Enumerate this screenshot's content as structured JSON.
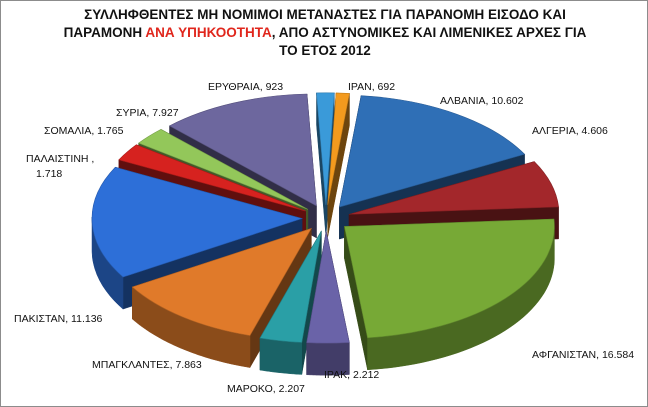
{
  "title": {
    "part1": "ΣΥΛΛΗΦΘΕΝΤΕΣ ΜΗ ΝΟΜΙΜΟΙ ΜΕΤΑΝΑΣΤΕΣ ΓΙΑ ΠΑΡΑΝΟΜΗ ΕΙΣΟΔΟ ΚΑΙ ΠΑΡΑΜΟΝΗ",
    "highlight": "ΑΝΑ ΥΠΗΚΟΟΤΗΤΑ",
    "part2": ", ΑΠΟ ΑΣΤΥΝΟΜΙΚΕΣ ΚΑΙ ΛΙΜΕΝΙΚΕΣ ΑΡΧΕΣ ΓΙΑ ΤΟ ΕΤΟΣ 2012",
    "highlight_color": "#e0261c"
  },
  "chart_data": {
    "type": "pie",
    "style": "3d-exploded",
    "legend": "none",
    "slices": [
      {
        "name": "ΙΡΑΝ",
        "value": 692,
        "label": "ΙΡΑΝ, 692",
        "color": "#f39a1e"
      },
      {
        "name": "ΑΛΒΑΝΙΑ",
        "value": 10602,
        "label": "ΑΛΒΑΝΙΑ, 10.602",
        "color": "#2f6fb6"
      },
      {
        "name": "ΑΛΓΕΡΙΑ",
        "value": 4606,
        "label": "ΑΛΓΕΡΙΑ, 4.606",
        "color": "#a3272b"
      },
      {
        "name": "ΑΦΓΑΝΙΣΤΑΝ",
        "value": 16584,
        "label": "ΑΦΓΑΝΙΣΤΑΝ, 16.584",
        "color": "#77a936"
      },
      {
        "name": "ΙΡΑΚ",
        "value": 2212,
        "label": "ΙΡΑΚ, 2.212",
        "color": "#6a63a8"
      },
      {
        "name": "ΜΑΡΟΚΟ",
        "value": 2207,
        "label": "ΜΑΡΟΚΟ, 2.207",
        "color": "#2a9fa6"
      },
      {
        "name": "ΜΠΑΓΚΛΑΝΤΕΣ",
        "value": 7863,
        "label": "ΜΠΑΓΚΛΑΝΤΕΣ, 7.863",
        "color": "#e07a2a"
      },
      {
        "name": "ΠΑΚΙΣΤΑΝ",
        "value": 11136,
        "label": "ΠΑΚΙΣΤΑΝ, 11.136",
        "color": "#2d6fd8"
      },
      {
        "name": "ΠΑΛΑΙΣΤΙΝΗ",
        "value": 1718,
        "label": "ΠΑΛΑΙΣΤΙΝΗ , 1.718",
        "color": "#d6221f"
      },
      {
        "name": "ΣΟΜΑΛΙΑ",
        "value": 1765,
        "label": "ΣΟΜΑΛΙΑ, 1.765",
        "color": "#93c75a"
      },
      {
        "name": "ΣΥΡΙΑ",
        "value": 7927,
        "label": "ΣΥΡΙΑ, 7.927",
        "color": "#6d679e"
      },
      {
        "name": "ΕΡΥΘΡΑΙΑ",
        "value": 923,
        "label": "ΕΡΥΘΡΑΙΑ, 923",
        "color": "#3a9ad9"
      }
    ]
  }
}
